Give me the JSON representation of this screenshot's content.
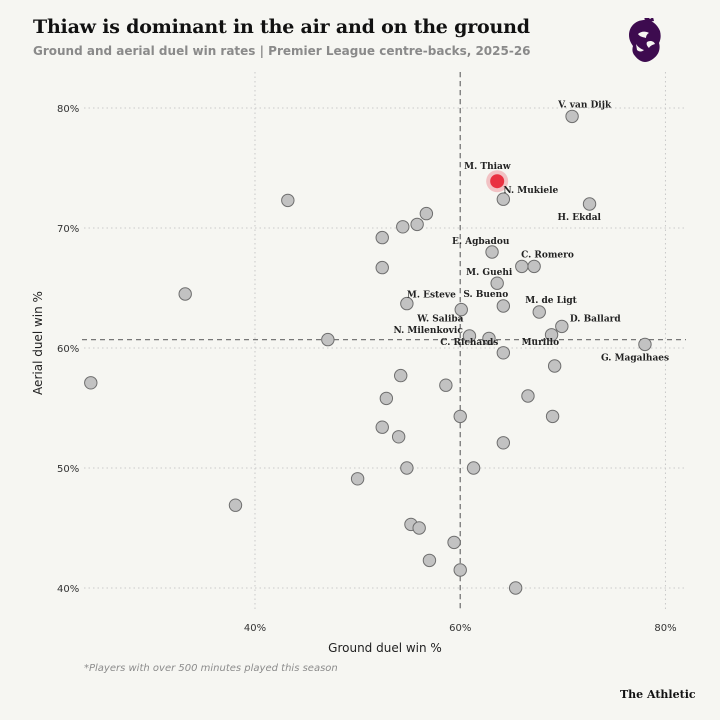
{
  "header": {
    "title": "Thiaw is dominant in the air and on the ground",
    "subtitle": "Ground and aerial duel win rates | Premier League centre-backs, 2025-26"
  },
  "footer": {
    "footnote": "*Players with over 500 minutes played this season",
    "source": "The Athletic"
  },
  "logo": {
    "icon": "premier-league-lion-icon",
    "color": "#3d0b4f"
  },
  "colors": {
    "point_fill": "#c2c2c2",
    "point_stroke": "#6e6e6e",
    "highlight": "#e8293a",
    "grid": "#c9c9c9",
    "median_line": "#777777"
  },
  "chart_data": {
    "type": "scatter",
    "xlabel": "Ground duel win %",
    "ylabel": "Aerial duel win %",
    "xlim": [
      21,
      82
    ],
    "ylim": [
      38,
      83
    ],
    "xticks": [
      40,
      60,
      80
    ],
    "yticks": [
      40,
      50,
      60,
      70,
      80
    ],
    "tick_suffix": "%",
    "grid": true,
    "reference_lines": {
      "x": 60,
      "y": 60.7
    },
    "highlight": "M. Thiaw",
    "points": [
      {
        "label": "V. van Dijk",
        "x": 70.9,
        "y": 79.3
      },
      {
        "label": "M. Thiaw",
        "x": 63.6,
        "y": 73.9,
        "highlight": true
      },
      {
        "label": "N. Mukiele",
        "x": 64.2,
        "y": 72.4
      },
      {
        "label": "H. Ekdal",
        "x": 72.6,
        "y": 72.0
      },
      {
        "label": "E. Agbadou",
        "x": 63.1,
        "y": 68.0
      },
      {
        "label": "C. Romero",
        "x": 67.2,
        "y": 66.8
      },
      {
        "label": "M. Guehi",
        "x": 63.6,
        "y": 65.4
      },
      {
        "label": "S. Bueno",
        "x": 64.2,
        "y": 63.5
      },
      {
        "label": "M. Esteve",
        "x": 54.8,
        "y": 63.7
      },
      {
        "label": "M. de Ligt",
        "x": 67.7,
        "y": 63.0
      },
      {
        "label": "W. Saliba",
        "x": 60.1,
        "y": 63.2
      },
      {
        "label": "D. Ballard",
        "x": 69.9,
        "y": 61.8
      },
      {
        "label": "N. Milenkovic",
        "x": 60.9,
        "y": 61.0
      },
      {
        "label": "Murillo",
        "x": 68.9,
        "y": 61.1
      },
      {
        "label": "C. Richards",
        "x": 64.2,
        "y": 59.6
      },
      {
        "label": "G. Magalhaes",
        "x": 78.0,
        "y": 60.3
      },
      {
        "x": 43.2,
        "y": 72.3
      },
      {
        "x": 56.7,
        "y": 71.2
      },
      {
        "x": 55.8,
        "y": 70.3
      },
      {
        "x": 54.4,
        "y": 70.1
      },
      {
        "x": 52.4,
        "y": 69.2
      },
      {
        "x": 66.0,
        "y": 66.8
      },
      {
        "x": 52.4,
        "y": 66.7
      },
      {
        "x": 33.2,
        "y": 64.5
      },
      {
        "x": 62.8,
        "y": 60.8
      },
      {
        "x": 47.1,
        "y": 60.7
      },
      {
        "x": 69.2,
        "y": 58.5
      },
      {
        "x": 54.2,
        "y": 57.7
      },
      {
        "x": 24.0,
        "y": 57.1
      },
      {
        "x": 58.6,
        "y": 56.9
      },
      {
        "x": 66.6,
        "y": 56.0
      },
      {
        "x": 52.8,
        "y": 55.8
      },
      {
        "x": 60.0,
        "y": 54.3
      },
      {
        "x": 69.0,
        "y": 54.3
      },
      {
        "x": 52.4,
        "y": 53.4
      },
      {
        "x": 54.0,
        "y": 52.6
      },
      {
        "x": 64.2,
        "y": 52.1
      },
      {
        "x": 54.8,
        "y": 50.0
      },
      {
        "x": 61.3,
        "y": 50.0
      },
      {
        "x": 50.0,
        "y": 49.1
      },
      {
        "x": 38.1,
        "y": 46.9
      },
      {
        "x": 55.2,
        "y": 45.3
      },
      {
        "x": 56.0,
        "y": 45.0
      },
      {
        "x": 59.4,
        "y": 43.8
      },
      {
        "x": 57.0,
        "y": 42.3
      },
      {
        "x": 60.0,
        "y": 41.5
      },
      {
        "x": 65.4,
        "y": 40.0
      }
    ]
  }
}
